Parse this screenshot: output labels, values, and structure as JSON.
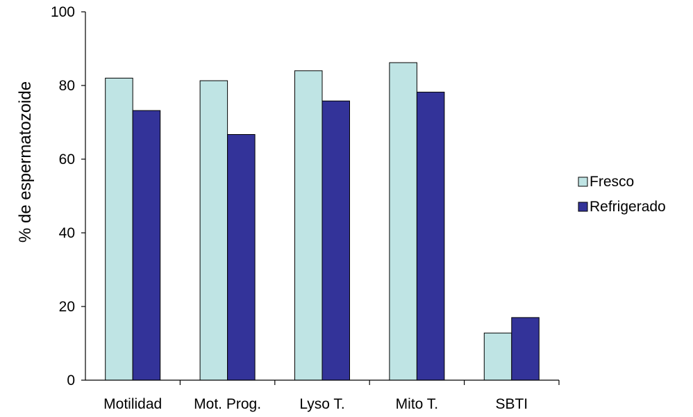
{
  "chart_data": {
    "type": "bar",
    "categories": [
      "Motilidad",
      "Mot. Prog.",
      "Lyso T.",
      "Mito T.",
      "SBTI"
    ],
    "series": [
      {
        "name": "Fresco",
        "values": [
          82,
          81.3,
          84,
          86.2,
          12.8
        ],
        "color": "#bfe4e4"
      },
      {
        "name": "Refrigerado",
        "values": [
          73.2,
          66.7,
          75.8,
          78.2,
          17
        ],
        "color": "#333399"
      }
    ],
    "ylabel": "% de espermatozoide",
    "xlabel": "",
    "ylim": [
      0,
      100
    ],
    "yticks": [
      0,
      20,
      40,
      60,
      80,
      100
    ],
    "legend_position": "right",
    "grid": false
  }
}
